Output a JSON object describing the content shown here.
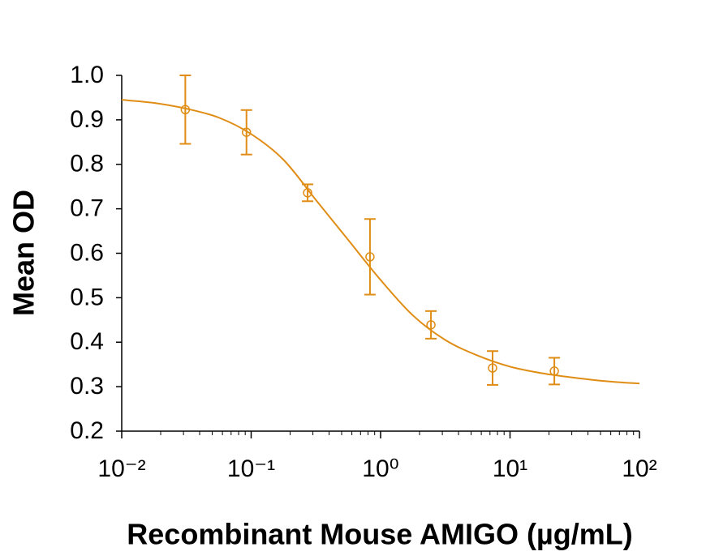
{
  "chart_data": {
    "type": "scatter",
    "x_label": "Recombinant Mouse AMIGO (µg/mL)",
    "y_label": "Mean OD",
    "x_scale": "log",
    "xlim": [
      0.01,
      100
    ],
    "xticks": [
      {
        "value": 0.01,
        "label": "10⁻²"
      },
      {
        "value": 0.1,
        "label": "10⁻¹"
      },
      {
        "value": 1,
        "label": "10⁰"
      },
      {
        "value": 10,
        "label": "10¹"
      },
      {
        "value": 100,
        "label": "10²"
      }
    ],
    "ylim": [
      0.2,
      1.0
    ],
    "yticks": [
      0.2,
      0.3,
      0.4,
      0.5,
      0.6,
      0.7,
      0.8,
      0.9,
      {
        "value": 1.0,
        "label": "1.0"
      }
    ],
    "grid": false,
    "series": [
      {
        "kind": "points",
        "color": "#e08d16",
        "x": [
          0.031,
          0.092,
          0.273,
          0.828,
          2.45,
          7.33,
          22
        ],
        "values": [
          0.923,
          0.872,
          0.736,
          0.592,
          0.439,
          0.342,
          0.335
        ],
        "errors": [
          0.077,
          0.05,
          0.019,
          0.085,
          0.031,
          0.038,
          0.03
        ]
      },
      {
        "kind": "curve",
        "color": "#e08d16",
        "x": [
          0.01,
          0.0178,
          0.0316,
          0.0562,
          0.1,
          0.178,
          0.316,
          0.562,
          1,
          1.78,
          3.16,
          5.62,
          10,
          17.8,
          31.6,
          56.2,
          100
        ],
        "values": [
          0.945,
          0.938,
          0.925,
          0.905,
          0.868,
          0.81,
          0.72,
          0.63,
          0.54,
          0.46,
          0.405,
          0.37,
          0.345,
          0.33,
          0.32,
          0.312,
          0.307
        ]
      }
    ]
  }
}
